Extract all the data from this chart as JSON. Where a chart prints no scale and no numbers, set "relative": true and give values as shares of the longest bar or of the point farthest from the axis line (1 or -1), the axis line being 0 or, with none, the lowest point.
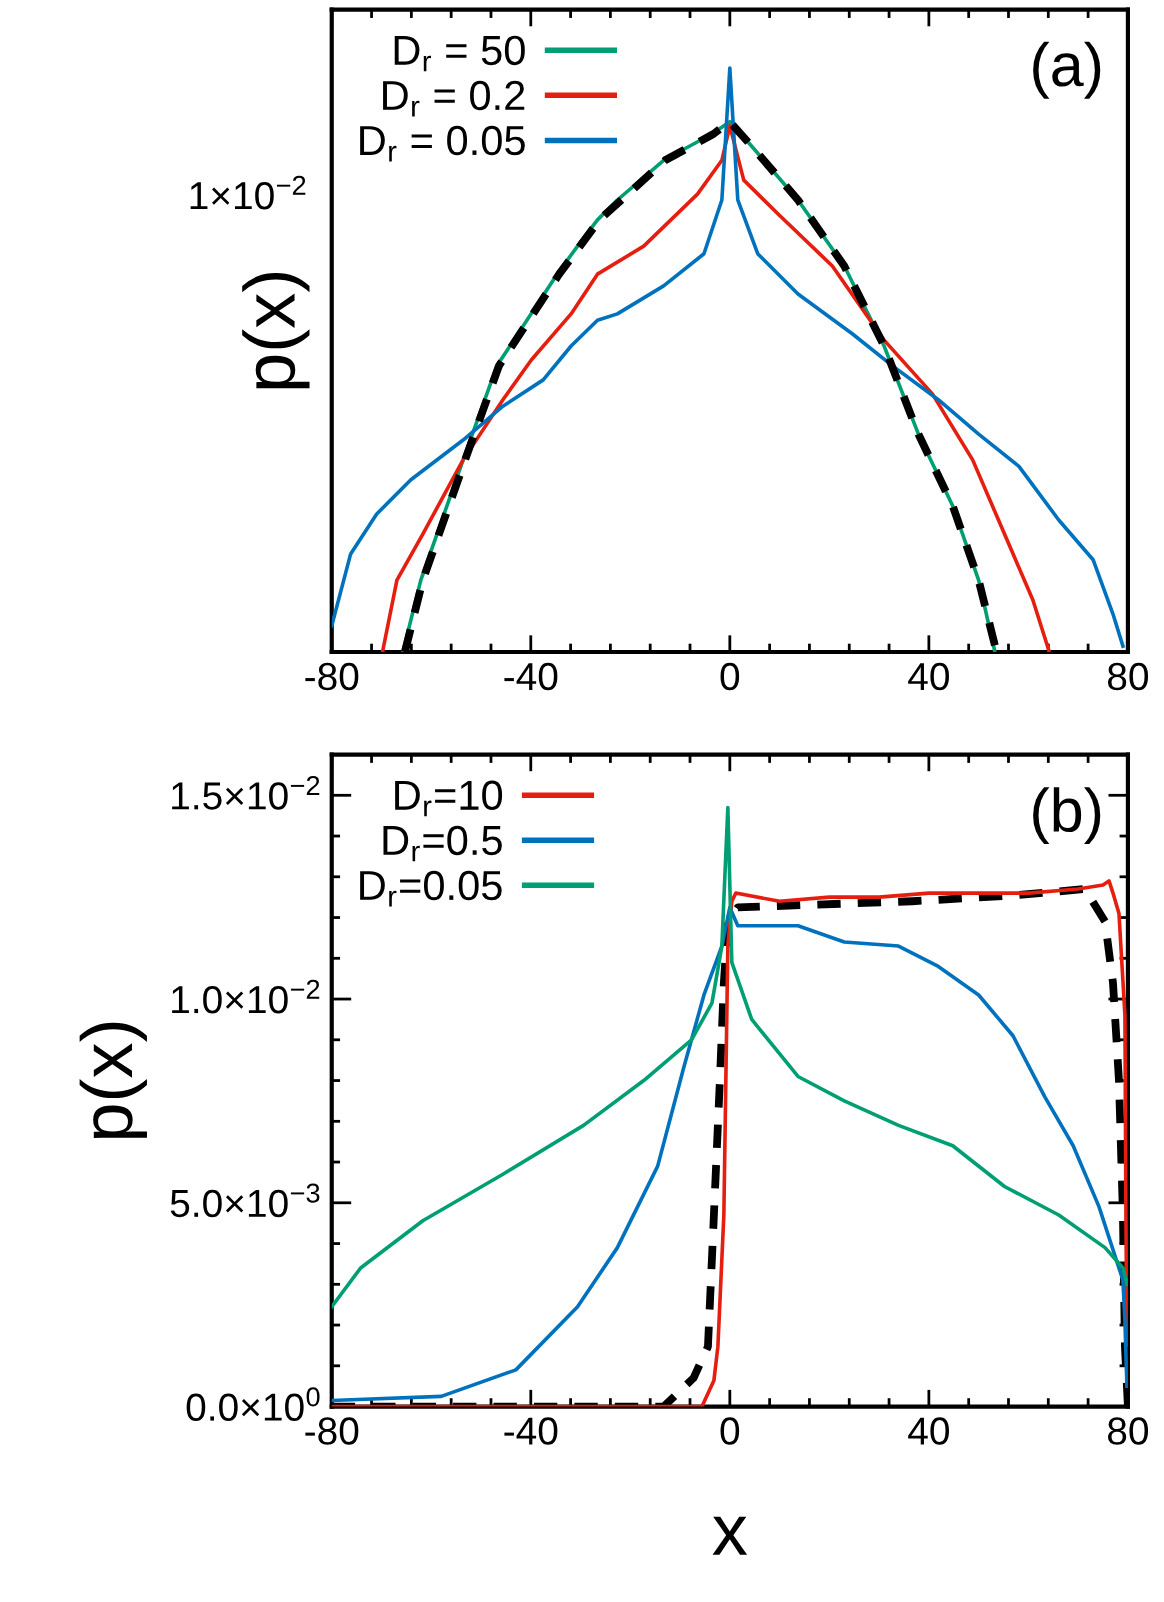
{
  "chart_data": [
    {
      "type": "line",
      "annotations": [
        "(a)",
        "1×10$^{−2}$"
      ],
      "ylabel": "p(x)",
      "relative": true,
      "legend": "top left",
      "grid": false,
      "xlim": [
        -80,
        80
      ],
      "xticks": [
        -80,
        -40,
        0,
        40,
        80
      ],
      "series": [
        {
          "name": "D$_{r}$ = 50",
          "color": "#009e73",
          "x": [
            -65.7,
            -62.1,
            -53.6,
            -46.8,
            -34.7,
            -30.6,
            -26.6,
            -22.6,
            -13.3,
            -3.6,
            0,
            4.4,
            13.7,
            23.0,
            31.0,
            37.9,
            44.8,
            50.0,
            53.2
          ],
          "values": [
            0,
            0.123,
            0.329,
            0.49,
            0.647,
            0.695,
            0.74,
            0.774,
            0.842,
            0.887,
            0.908,
            0.866,
            0.774,
            0.661,
            0.524,
            0.373,
            0.25,
            0.123,
            0.003
          ]
        },
        {
          "name": "D$_{r}$ = 0.2",
          "color": "#e51e10",
          "x": [
            -69.8,
            -66.9,
            -61.7,
            -53.6,
            -45.6,
            -39.9,
            -31.9,
            -26.6,
            -17.3,
            -6.5,
            -1.6,
            0,
            2.8,
            9.7,
            20.6,
            31.0,
            40.7,
            48.8,
            55.2,
            60.9,
            64.1
          ],
          "values": [
            0,
            0.123,
            0.202,
            0.329,
            0.432,
            0.5,
            0.579,
            0.647,
            0.695,
            0.784,
            0.842,
            0.901,
            0.808,
            0.75,
            0.661,
            0.534,
            0.442,
            0.329,
            0.202,
            0.089,
            0.003
          ]
        },
        {
          "name": "D$_{r}$ = 0.05",
          "color": "#0072bd",
          "x": [
            -80,
            -76.2,
            -71.0,
            -64.1,
            -53.6,
            -45.6,
            -37.5,
            -31.9,
            -26.6,
            -22.6,
            -13.3,
            -5.2,
            -1.6,
            0,
            1.6,
            5.6,
            13.7,
            24.6,
            32.7,
            41.9,
            50.0,
            58.1,
            66.1,
            73.0,
            77.0,
            79.0
          ],
          "values": [
            0.045,
            0.168,
            0.236,
            0.295,
            0.363,
            0.421,
            0.466,
            0.524,
            0.568,
            0.579,
            0.627,
            0.682,
            0.774,
            1,
            0.774,
            0.682,
            0.613,
            0.545,
            0.49,
            0.432,
            0.373,
            0.318,
            0.226,
            0.158,
            0.065,
            0.01
          ]
        },
        {
          "color": "#000000",
          "line_style": "dashed",
          "x": [
            -65.3,
            -61.7,
            -53.2,
            -46.4,
            -34.3,
            -26.2,
            -13.0,
            -3.3,
            0,
            4.4,
            13.7,
            23.0,
            31.0,
            37.9,
            44.8,
            50.0,
            53.6
          ],
          "values": [
            0,
            0.123,
            0.329,
            0.49,
            0.647,
            0.74,
            0.842,
            0.887,
            0.908,
            0.866,
            0.774,
            0.661,
            0.524,
            0.373,
            0.25,
            0.123,
            0
          ]
        }
      ]
    },
    {
      "type": "line",
      "annotations": [
        "(b)"
      ],
      "ylabel": "p(x)",
      "xlabel": "x",
      "legend": "top left",
      "grid": false,
      "xlim": [
        -80,
        80
      ],
      "xticks": [
        -80,
        -40,
        0,
        40,
        80
      ],
      "ylim": [
        0,
        0.016
      ],
      "yticks": [
        {
          "value": 0,
          "label": "0.0×10$^{0}$"
        },
        {
          "value": 0.005,
          "label": "5.0×10$^{−3}$"
        },
        {
          "value": 0.01,
          "label": "1.0×10$^{−2}$"
        },
        {
          "value": 0.015,
          "label": "1.5×10$^{−2}$"
        }
      ],
      "series": [
        {
          "color": "#000000",
          "line_style": "dashed",
          "x": [
            -80,
            -13.3,
            -7.3,
            -4.4,
            -3.2,
            -2.0,
            -1.2,
            -0.4,
            1.6,
            36.7,
            56.9,
            71.4,
            75.4,
            77.0,
            78.2,
            79.0,
            79.4,
            80
          ],
          "values": [
            0,
            0,
            0.0007,
            0.00147,
            0.0047,
            0.008,
            0.0104,
            0.0119,
            0.01225,
            0.0124,
            0.01254,
            0.0127,
            0.0119,
            0.0104,
            0.008,
            0.0047,
            0.00147,
            0
          ]
        },
        {
          "name": "D$_{r}$=10",
          "color": "#e51e10",
          "x": [
            -80,
            -10,
            -5.6,
            -3.2,
            -2.4,
            -1.2,
            -0.8,
            -0.4,
            0.4,
            1.2,
            10,
            20,
            30,
            40,
            50,
            60,
            70,
            75,
            76.2,
            77.0,
            78.2,
            79.4,
            79.6,
            79.8
          ],
          "values": [
            0,
            0,
            0,
            0.00064,
            0.00147,
            0.0047,
            0.008,
            0.0113,
            0.0124,
            0.0126,
            0.0124,
            0.0125,
            0.0125,
            0.0126,
            0.0126,
            0.0126,
            0.0127,
            0.0128,
            0.0129,
            0.0126,
            0.0121,
            0.0096,
            0.0047,
            0.0015
          ]
        },
        {
          "name": "D$_{r}$=0.5",
          "color": "#0072bd",
          "x": [
            -80,
            -58,
            -43,
            -30.6,
            -22.6,
            -14.5,
            -9.3,
            -5.2,
            -1.6,
            0,
            1.6,
            13.7,
            23,
            33.9,
            41.9,
            50,
            56.9,
            63.3,
            69,
            74.2,
            79,
            79.4,
            79.8
          ],
          "values": [
            0.00015,
            0.00025,
            0.0009,
            0.00245,
            0.0039,
            0.0059,
            0.0083,
            0.0101,
            0.0113,
            0.01225,
            0.0118,
            0.0118,
            0.0114,
            0.0113,
            0.0108,
            0.0101,
            0.0091,
            0.0076,
            0.0064,
            0.0049,
            0.0031,
            0.0021,
            0.0005
          ]
        },
        {
          "name": "D$_{r}$=0.05",
          "color": "#009e73",
          "x": [
            -80,
            -74.2,
            -61.7,
            -45.6,
            -29.4,
            -17.3,
            -7.7,
            -3.6,
            -1.6,
            -0.4,
            0.4,
            4.4,
            13.7,
            23,
            33.9,
            44.8,
            55.2,
            66.1,
            75.4,
            79,
            79.8
          ],
          "values": [
            0.00245,
            0.0034,
            0.00456,
            0.0057,
            0.0069,
            0.008,
            0.009,
            0.0099,
            0.0113,
            0.0147,
            0.0109,
            0.0095,
            0.0081,
            0.0075,
            0.0069,
            0.0064,
            0.0054,
            0.0047,
            0.0039,
            0.0034,
            0.003
          ]
        }
      ]
    }
  ]
}
